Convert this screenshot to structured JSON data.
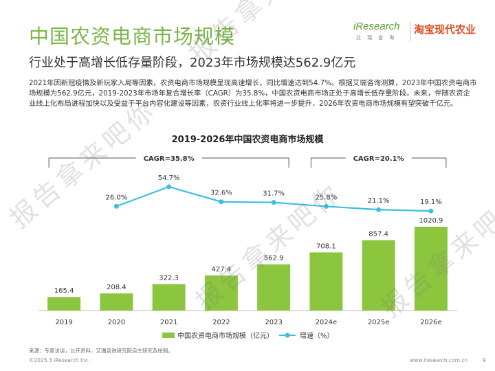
{
  "header": {
    "title": "中国农资电商市场规模",
    "subtitle": "行业处于高增长低存量阶段，2023年市场规模达562.9亿元",
    "logo_main": "iResearch",
    "logo_sub": "艾瑞咨询",
    "logo_brand": "淘宝现代农业"
  },
  "paragraph": "2021年因新冠疫情及新玩家入局等因素，农资电商市场规模呈现高速增长，同比增速达到54.7%。根据艾瑞咨询测算，2023年中国农资电商市场规模为562.9亿元，2019-2023年市场年复合增长率（CAGR）为35.8%，中国农资电商市场正处于高增长低存量阶段。未来，伴随农资企业线上化布局进程加快以及受益于平台内容化建设等因素，农资行业线上化率将进一步提升，2026年农资电商市场规模有望突破千亿元。",
  "chart_data": {
    "type": "bar",
    "title": "2019-2026年中国农资电商市场规模",
    "categories": [
      "2019",
      "2020",
      "2021",
      "2022",
      "2023",
      "2024e",
      "2025e",
      "2026e"
    ],
    "series": [
      {
        "name": "中国农资电商市场规模（亿元）",
        "type": "bar",
        "color": "#8cc63f",
        "values": [
          165.4,
          208.4,
          322.3,
          427.4,
          562.9,
          708.1,
          857.4,
          1020.9
        ]
      },
      {
        "name": "增速（%）",
        "type": "line",
        "color": "#3bbfe0",
        "values": [
          null,
          26.0,
          54.7,
          32.6,
          31.7,
          25.8,
          21.1,
          19.1
        ]
      }
    ],
    "growth_labels": [
      "",
      "26.0%",
      "54.7%",
      "32.6%",
      "31.7%",
      "25.8%",
      "21.1%",
      "19.1%"
    ],
    "cagr_annotations": [
      {
        "label": "CAGR=35.8%",
        "from": "2019",
        "to": "2023"
      },
      {
        "label": "CAGR=20.1%",
        "from": "2024e",
        "to": "2026e"
      }
    ],
    "legend_position": "bottom",
    "grid": false
  },
  "footer": {
    "source": "来源：专家访谈，公开资料，艾瑞咨询研究院自主研究及绘制。",
    "copyright": "©2025.3 iResearch Inc.",
    "website": "www.iresearch.com.cn",
    "page_number": "9"
  },
  "watermark": "报告拿来吧你"
}
